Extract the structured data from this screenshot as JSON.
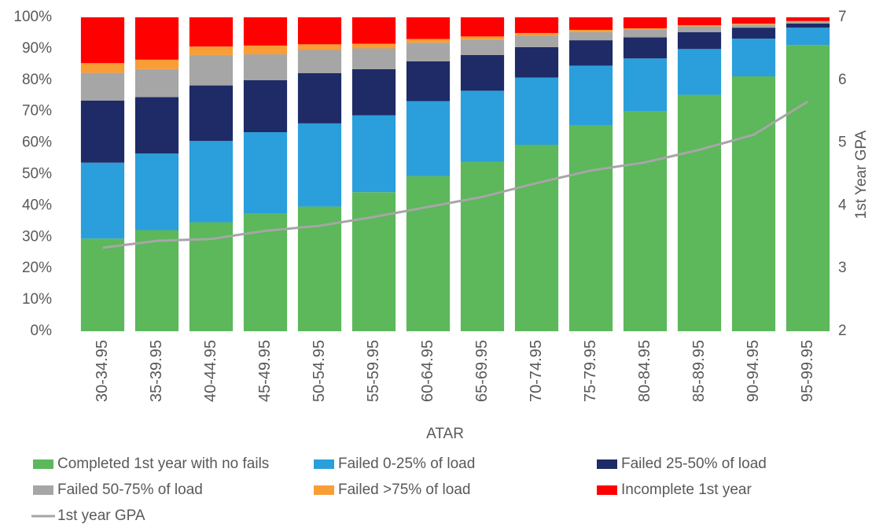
{
  "chart_data": {
    "type": "bar",
    "stacked": true,
    "x_label": "ATAR",
    "y2_label": "1st Year GPA",
    "categories": [
      "30-34.95",
      "35-39.95",
      "40-44.95",
      "45-49.95",
      "50-54.95",
      "55-59.95",
      "60-64.95",
      "65-69.95",
      "70-74.95",
      "75-79.95",
      "80-84.95",
      "85-89.95",
      "90-94.95",
      "95-99.95"
    ],
    "ylim": [
      0,
      100
    ],
    "yticks": [
      {
        "value": 0,
        "label": "0%"
      },
      {
        "value": 10,
        "label": "10%"
      },
      {
        "value": 20,
        "label": "20%"
      },
      {
        "value": 30,
        "label": "30%"
      },
      {
        "value": 40,
        "label": "40%"
      },
      {
        "value": 50,
        "label": "50%"
      },
      {
        "value": 60,
        "label": "60%"
      },
      {
        "value": 70,
        "label": "70%"
      },
      {
        "value": 80,
        "label": "80%"
      },
      {
        "value": 90,
        "label": "90%"
      },
      {
        "value": 100,
        "label": "100%"
      }
    ],
    "y2lim": [
      2,
      7
    ],
    "y2ticks": [
      2,
      3,
      4,
      5,
      6,
      7
    ],
    "legend": "bottom",
    "series": [
      {
        "name": "Completed 1st year with no fails",
        "color": "#5cb85a",
        "values": [
          29.5,
          32.2,
          34.7,
          37.4,
          39.7,
          44.3,
          49.4,
          54.0,
          59.4,
          65.5,
          70.0,
          75.3,
          81.2,
          91.2
        ]
      },
      {
        "name": "Failed 0-25% of load",
        "color": "#2a9fdb",
        "values": [
          24.2,
          24.4,
          25.9,
          26.0,
          26.5,
          24.5,
          23.9,
          22.6,
          21.4,
          19.1,
          16.9,
          14.6,
          12.0,
          5.5
        ]
      },
      {
        "name": "Failed 25-50% of load",
        "color": "#1f2b66",
        "values": [
          19.8,
          18.0,
          17.7,
          16.6,
          16.0,
          14.7,
          12.7,
          11.4,
          9.7,
          8.1,
          6.7,
          5.4,
          3.5,
          1.3
        ]
      },
      {
        "name": "Failed 50-75% of load",
        "color": "#a6a6a6",
        "values": [
          8.8,
          8.9,
          9.7,
          8.2,
          7.4,
          6.6,
          5.9,
          4.9,
          3.6,
          2.6,
          2.4,
          1.8,
          1.0,
          0.5
        ]
      },
      {
        "name": "Failed >75% of load",
        "color": "#f99d36",
        "values": [
          3.1,
          3.0,
          2.7,
          2.8,
          1.8,
          1.5,
          1.2,
          1.0,
          0.9,
          0.7,
          0.5,
          0.4,
          0.3,
          0.3
        ]
      },
      {
        "name": "Incomplete 1st year",
        "color": "#ff0000",
        "values": [
          14.6,
          13.5,
          9.3,
          9.0,
          8.6,
          8.4,
          6.9,
          6.1,
          5.0,
          4.0,
          3.5,
          2.5,
          2.0,
          1.2
        ]
      },
      {
        "name": "1st year GPA",
        "color": "#a6a6a6",
        "type": "line",
        "axis": "y2",
        "values": [
          3.33,
          3.44,
          3.47,
          3.6,
          3.68,
          3.82,
          3.98,
          4.14,
          4.36,
          4.56,
          4.69,
          4.89,
          5.13,
          5.66
        ]
      }
    ]
  }
}
